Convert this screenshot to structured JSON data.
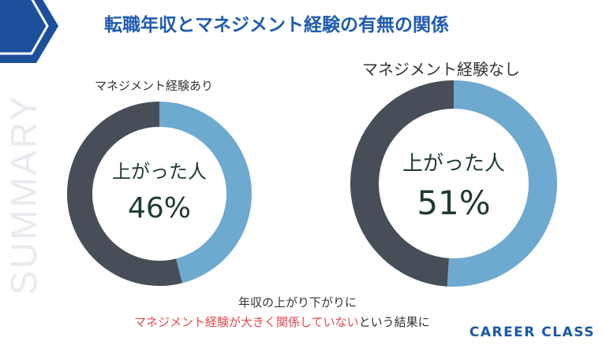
{
  "title": "転職年収とマネジメント経験の有無の関係",
  "side_text": "SUMMARY",
  "colors": {
    "title": "#1f5bb0",
    "dark": "#474e57",
    "light": "#6ea9d0",
    "highlight": "#e4474f",
    "brand": "#1a58a8"
  },
  "chart_data": [
    {
      "type": "pie",
      "title": "マネジメント経験あり",
      "center_label": "上がった人",
      "center_value": "46%",
      "values": [
        46,
        54
      ]
    },
    {
      "type": "pie",
      "title": "マネジメント経験なし",
      "center_label": "上がった人",
      "center_value": "51%",
      "values": [
        51,
        49
      ]
    }
  ],
  "footer": {
    "line1": "年収の上がり下がりに",
    "line2_highlight": "マネジメント経験が大きく関係していない",
    "line2_rest": "という結果に"
  },
  "brand": "CAREER CLASS"
}
